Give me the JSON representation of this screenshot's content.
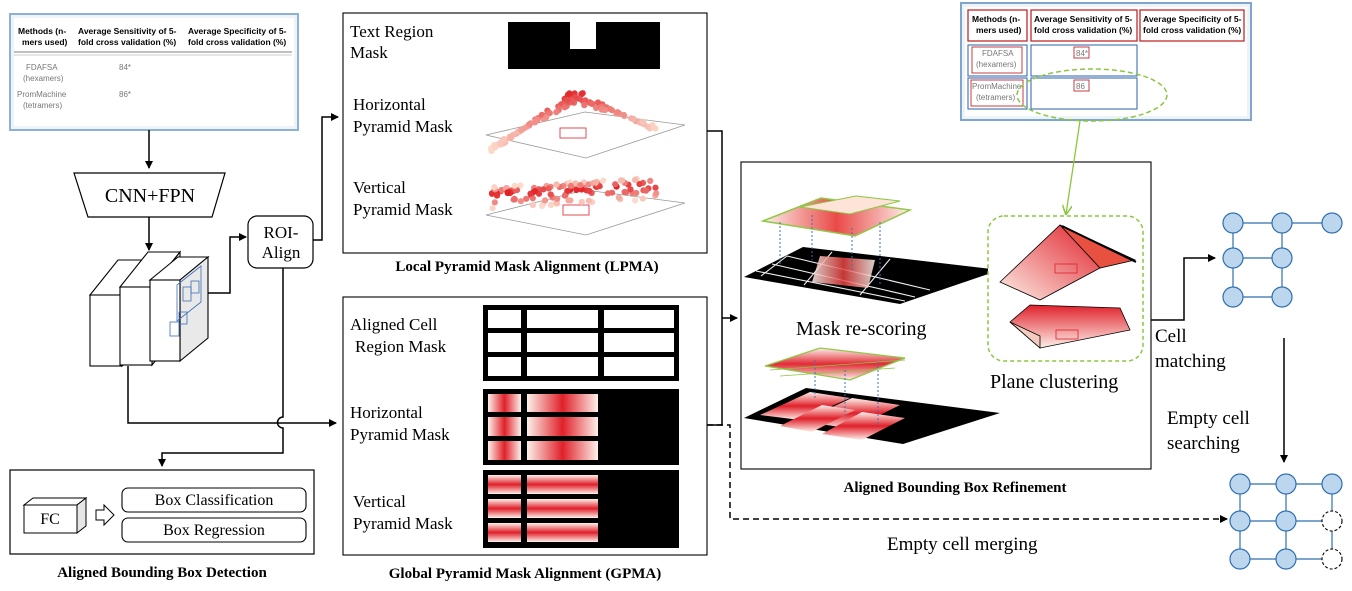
{
  "input_table": {
    "headers": [
      "Methods (n-mers used)",
      "Average Sensitivity of 5-fold cross validation (%)",
      "Average Specificity of 5-fold cross validation (%)"
    ],
    "header_lines": [
      [
        "Methods (n-",
        "mers used)"
      ],
      [
        "Average Sensitivity of 5-",
        "fold cross validation (%)"
      ],
      [
        "Average Specificity of 5-",
        "fold cross validation (%)"
      ]
    ],
    "rows": [
      {
        "method": [
          "FDAFSA",
          "(hexamers)"
        ],
        "sensitivity": "84*"
      },
      {
        "method": [
          "PromMachine",
          "(tetramers)"
        ],
        "sensitivity": "86*"
      }
    ]
  },
  "output_table": {
    "header_lines": [
      [
        "Methods (n-",
        "mers used)"
      ],
      [
        "Average Sensitivity of 5-",
        "fold cross validation (%)"
      ],
      [
        "Average Specificity of 5-",
        "fold cross validation (%)"
      ]
    ],
    "rows": [
      {
        "method": [
          "FDAFSA",
          "(hexamers)"
        ],
        "sensitivity": "84*"
      },
      {
        "method": [
          "PromMachine",
          "(tetramers)"
        ],
        "sensitivity": "86"
      }
    ]
  },
  "detection": {
    "backbone": "CNN+FPN",
    "roi_align": [
      "ROI-",
      "Align"
    ],
    "fc": "FC",
    "box_classification": "Box Classification",
    "box_regression": "Box Regression",
    "title": "Aligned Bounding Box Detection"
  },
  "lpma": {
    "text_region_mask": [
      "Text Region",
      "Mask"
    ],
    "horizontal_pyramid_mask": [
      "Horizontal",
      "Pyramid Mask"
    ],
    "vertical_pyramid_mask": [
      "Vertical",
      "Pyramid Mask"
    ],
    "title": "Local Pyramid Mask Alignment (LPMA)"
  },
  "gpma": {
    "aligned_cell_region_mask": [
      "Aligned Cell",
      "Region  Mask"
    ],
    "horizontal_pyramid_mask": [
      "Horizontal",
      "Pyramid Mask"
    ],
    "vertical_pyramid_mask": [
      "Vertical",
      "Pyramid Mask"
    ],
    "title": "Global Pyramid Mask Alignment (GPMA)"
  },
  "refinement": {
    "mask_rescoring": "Mask re-scoring",
    "plane_clustering": "Plane clustering",
    "title": "Aligned Bounding Box Refinement"
  },
  "graph": {
    "cell_matching": [
      "Cell",
      "matching"
    ],
    "empty_cell_searching": [
      "Empty cell",
      "searching"
    ],
    "empty_cell_merging": "Empty cell merging"
  },
  "colors": {
    "mask_red": "#e0202a",
    "mask_light": "#fbe3dc",
    "node_fill": "#bcd6ee",
    "node_stroke": "#2e6fb0",
    "green_dash": "#8cc63f",
    "table_red": "#c0282d",
    "table_blue": "#3d6fb5",
    "frame_blue": "#7ea6cf"
  }
}
